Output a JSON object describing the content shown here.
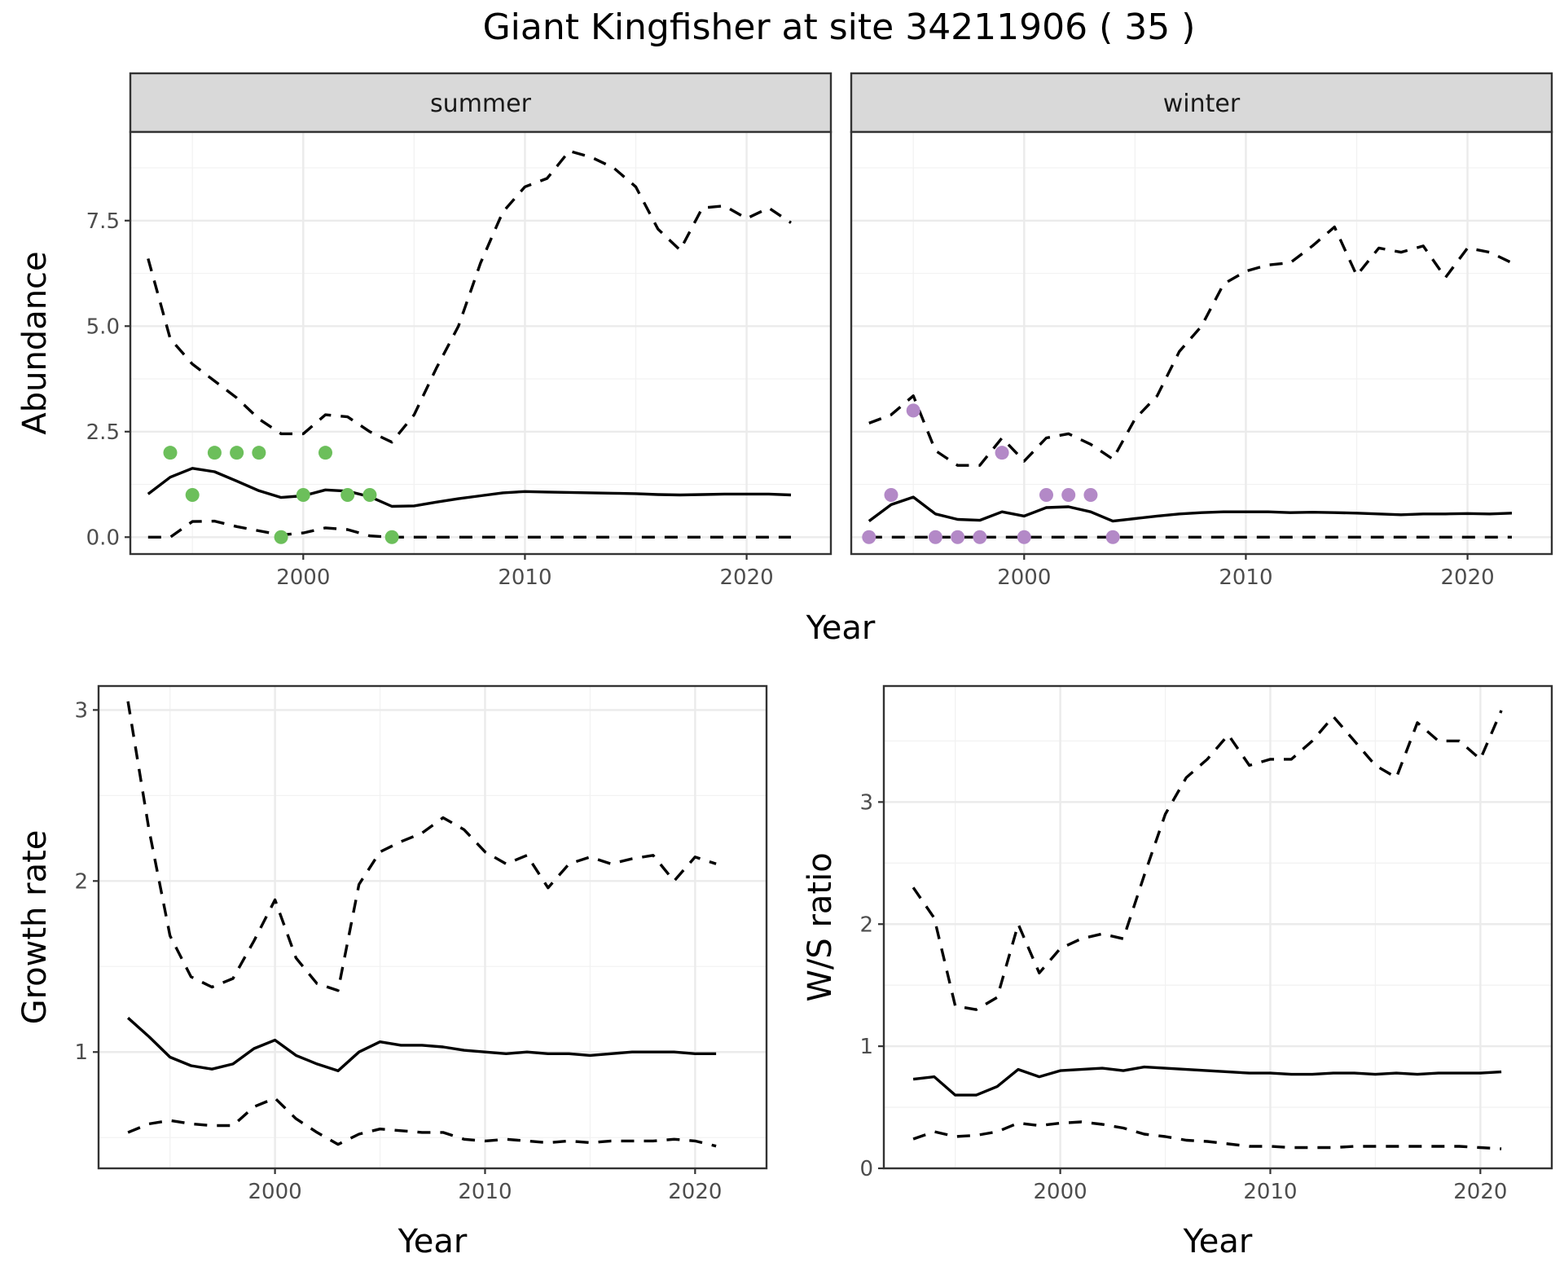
{
  "chart_data": {
    "title": "Giant Kingfisher at site 34211906 ( 35 )",
    "abundance": {
      "type": "line",
      "xlabel": "Year",
      "ylabel": "Abundance",
      "x_ticks": [
        2000,
        2010,
        2020
      ],
      "y_ticks": [
        "0.0",
        "2.5",
        "5.0",
        "7.5"
      ],
      "y_tick_values": [
        0,
        2.5,
        5,
        7.5
      ],
      "xlim": [
        1992.2,
        2023.8
      ],
      "ylim": [
        -0.4,
        9.6
      ],
      "panels": [
        {
          "strip": "summer",
          "point_color": "#6cbf5b",
          "years": [
            1993,
            1994,
            1995,
            1996,
            1997,
            1998,
            1999,
            2000,
            2001,
            2002,
            2003,
            2004,
            2005,
            2006,
            2007,
            2008,
            2009,
            2010,
            2011,
            2012,
            2013,
            2014,
            2015,
            2016,
            2017,
            2018,
            2019,
            2020,
            2021,
            2022
          ],
          "mean": [
            1.02,
            1.42,
            1.63,
            1.55,
            1.33,
            1.1,
            0.94,
            0.98,
            1.12,
            1.09,
            0.96,
            0.73,
            0.74,
            0.83,
            0.91,
            0.98,
            1.05,
            1.08,
            1.07,
            1.06,
            1.05,
            1.04,
            1.03,
            1.01,
            1.0,
            1.01,
            1.02,
            1.02,
            1.02,
            1.0
          ],
          "upper": [
            6.6,
            4.7,
            4.1,
            3.7,
            3.3,
            2.8,
            2.45,
            2.45,
            2.9,
            2.85,
            2.5,
            2.25,
            2.9,
            4.0,
            5.0,
            6.5,
            7.7,
            8.3,
            8.5,
            9.15,
            9.0,
            8.75,
            8.3,
            7.3,
            6.8,
            7.8,
            7.85,
            7.55,
            7.8,
            7.45
          ],
          "lower": [
            0,
            0,
            0.37,
            0.38,
            0.25,
            0.15,
            0.05,
            0.1,
            0.22,
            0.18,
            0.03,
            0,
            0,
            0,
            0,
            0,
            0,
            0,
            0,
            0,
            0,
            0,
            0,
            0,
            0,
            0,
            0,
            0,
            0,
            0
          ],
          "points": [
            [
              1994,
              2
            ],
            [
              1995,
              1
            ],
            [
              1996,
              2
            ],
            [
              1997,
              2
            ],
            [
              1998,
              2
            ],
            [
              1999,
              0
            ],
            [
              2000,
              1
            ],
            [
              2001,
              2
            ],
            [
              2002,
              1
            ],
            [
              2003,
              1
            ],
            [
              2004,
              0
            ]
          ]
        },
        {
          "strip": "winter",
          "point_color": "#b389c7",
          "years": [
            1993,
            1994,
            1995,
            1996,
            1997,
            1998,
            1999,
            2000,
            2001,
            2002,
            2003,
            2004,
            2005,
            2006,
            2007,
            2008,
            2009,
            2010,
            2011,
            2012,
            2013,
            2014,
            2015,
            2016,
            2017,
            2018,
            2019,
            2020,
            2021,
            2022
          ],
          "mean": [
            0.38,
            0.77,
            0.95,
            0.55,
            0.42,
            0.4,
            0.6,
            0.5,
            0.7,
            0.72,
            0.6,
            0.38,
            0.44,
            0.5,
            0.55,
            0.58,
            0.6,
            0.6,
            0.6,
            0.58,
            0.59,
            0.58,
            0.57,
            0.55,
            0.53,
            0.55,
            0.55,
            0.56,
            0.55,
            0.57
          ],
          "upper": [
            2.7,
            2.9,
            3.35,
            2.05,
            1.7,
            1.7,
            2.35,
            1.8,
            2.35,
            2.45,
            2.2,
            1.85,
            2.8,
            3.35,
            4.4,
            5.0,
            6.0,
            6.3,
            6.45,
            6.5,
            6.9,
            7.35,
            6.2,
            6.85,
            6.75,
            6.9,
            6.15,
            6.85,
            6.75,
            6.5
          ],
          "lower": [
            0,
            0,
            0,
            0,
            0,
            0,
            0,
            0,
            0,
            0,
            0,
            0,
            0,
            0,
            0,
            0,
            0,
            0,
            0,
            0,
            0,
            0,
            0,
            0,
            0,
            0,
            0,
            0,
            0,
            0
          ],
          "points": [
            [
              1993,
              0
            ],
            [
              1994,
              1
            ],
            [
              1995,
              3
            ],
            [
              1996,
              0
            ],
            [
              1997,
              0
            ],
            [
              1998,
              0
            ],
            [
              1999,
              2
            ],
            [
              2000,
              0
            ],
            [
              2001,
              1
            ],
            [
              2002,
              1
            ],
            [
              2003,
              1
            ],
            [
              2004,
              0
            ]
          ]
        }
      ]
    },
    "growth_rate": {
      "type": "line",
      "xlabel": "Year",
      "ylabel": "Growth rate",
      "x_ticks": [
        2000,
        2010,
        2020
      ],
      "y_ticks": [
        "1",
        "2",
        "3"
      ],
      "y_tick_values": [
        1,
        2,
        3
      ],
      "xlim": [
        1991.6,
        2023.4
      ],
      "ylim": [
        0.32,
        3.14
      ],
      "years": [
        1993,
        1994,
        1995,
        1996,
        1997,
        1998,
        1999,
        2000,
        2001,
        2002,
        2003,
        2004,
        2005,
        2006,
        2007,
        2008,
        2009,
        2010,
        2011,
        2012,
        2013,
        2014,
        2015,
        2016,
        2017,
        2018,
        2019,
        2020,
        2021
      ],
      "mean": [
        1.2,
        1.09,
        0.97,
        0.92,
        0.9,
        0.93,
        1.02,
        1.07,
        0.98,
        0.93,
        0.89,
        1.0,
        1.06,
        1.04,
        1.04,
        1.03,
        1.01,
        1.0,
        0.99,
        1.0,
        0.99,
        0.99,
        0.98,
        0.99,
        1.0,
        1.0,
        1.0,
        0.99,
        0.99
      ],
      "upper": [
        3.05,
        2.3,
        1.68,
        1.44,
        1.38,
        1.43,
        1.65,
        1.89,
        1.55,
        1.4,
        1.36,
        1.98,
        2.17,
        2.23,
        2.28,
        2.37,
        2.3,
        2.17,
        2.1,
        2.15,
        1.96,
        2.1,
        2.14,
        2.1,
        2.13,
        2.15,
        2.0,
        2.14,
        2.1
      ],
      "lower": [
        0.53,
        0.58,
        0.6,
        0.58,
        0.57,
        0.57,
        0.68,
        0.73,
        0.61,
        0.53,
        0.46,
        0.52,
        0.55,
        0.54,
        0.53,
        0.53,
        0.49,
        0.48,
        0.49,
        0.48,
        0.47,
        0.48,
        0.47,
        0.48,
        0.48,
        0.48,
        0.49,
        0.48,
        0.45
      ]
    },
    "ws_ratio": {
      "type": "line",
      "xlabel": "Year",
      "ylabel": "W/S ratio",
      "x_ticks": [
        2000,
        2010,
        2020
      ],
      "y_ticks": [
        "0",
        "1",
        "2",
        "3"
      ],
      "y_tick_values": [
        0,
        1,
        2,
        3
      ],
      "xlim": [
        1991.6,
        2023.4
      ],
      "ylim": [
        0,
        3.95
      ],
      "years": [
        1993,
        1994,
        1995,
        1996,
        1997,
        1998,
        1999,
        2000,
        2001,
        2002,
        2003,
        2004,
        2005,
        2006,
        2007,
        2008,
        2009,
        2010,
        2011,
        2012,
        2013,
        2014,
        2015,
        2016,
        2017,
        2018,
        2019,
        2020,
        2021
      ],
      "mean": [
        0.73,
        0.75,
        0.6,
        0.6,
        0.67,
        0.81,
        0.75,
        0.8,
        0.81,
        0.82,
        0.8,
        0.83,
        0.82,
        0.81,
        0.8,
        0.79,
        0.78,
        0.78,
        0.77,
        0.77,
        0.78,
        0.78,
        0.77,
        0.78,
        0.77,
        0.78,
        0.78,
        0.78,
        0.79
      ],
      "upper": [
        2.3,
        2.05,
        1.33,
        1.3,
        1.4,
        2.0,
        1.6,
        1.8,
        1.88,
        1.92,
        1.88,
        2.4,
        2.9,
        3.2,
        3.35,
        3.55,
        3.3,
        3.35,
        3.35,
        3.5,
        3.7,
        3.5,
        3.3,
        3.2,
        3.65,
        3.5,
        3.5,
        3.35,
        3.75
      ],
      "lower": [
        0.24,
        0.3,
        0.26,
        0.27,
        0.3,
        0.37,
        0.35,
        0.37,
        0.38,
        0.36,
        0.33,
        0.28,
        0.26,
        0.23,
        0.22,
        0.2,
        0.18,
        0.18,
        0.17,
        0.17,
        0.17,
        0.18,
        0.18,
        0.18,
        0.18,
        0.18,
        0.18,
        0.17,
        0.16
      ]
    }
  }
}
